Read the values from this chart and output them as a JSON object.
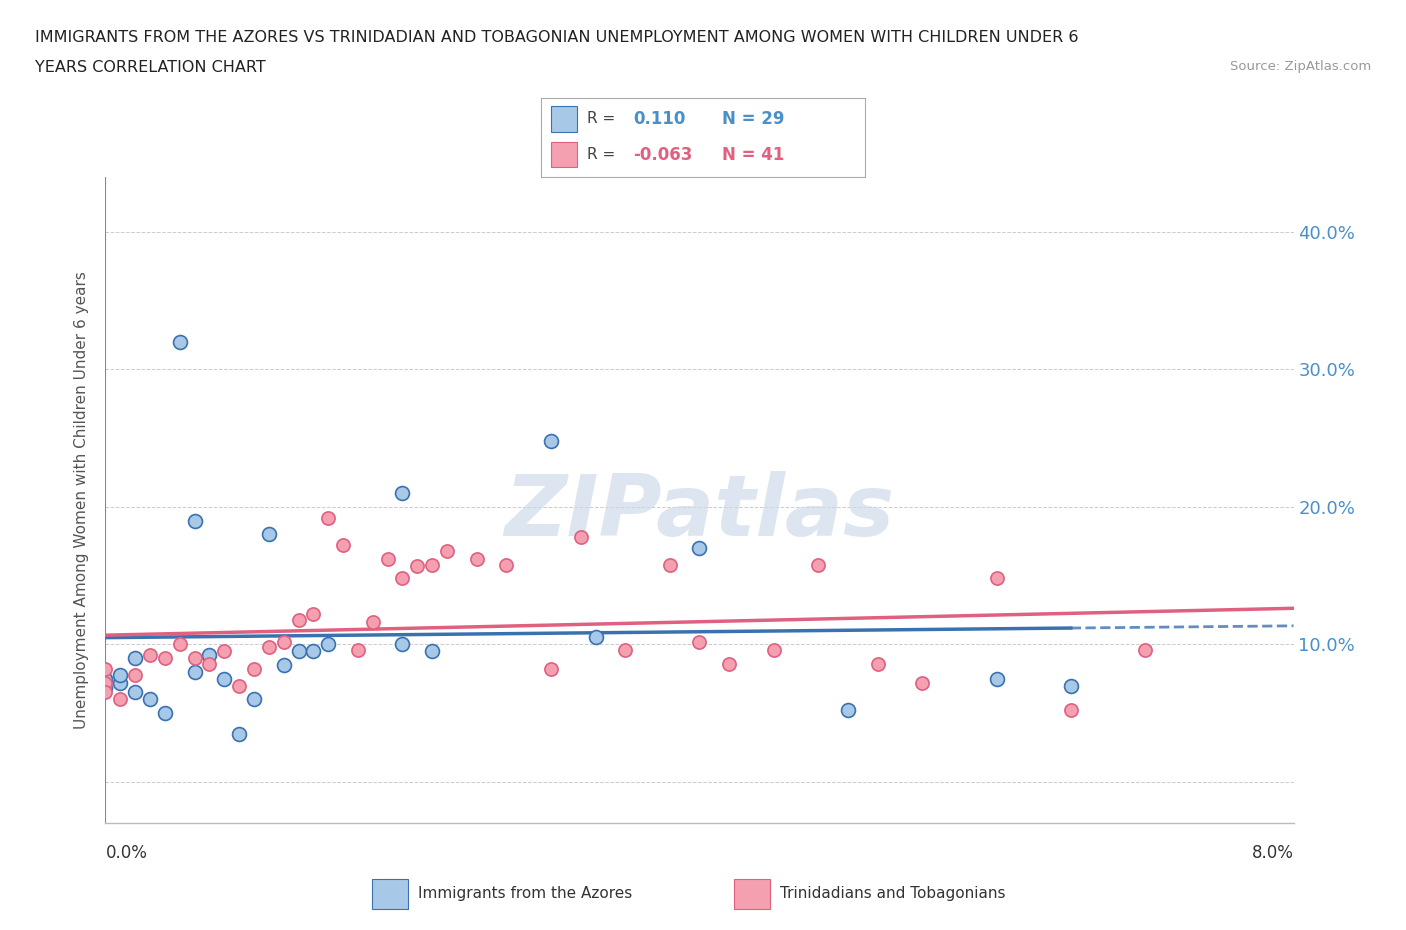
{
  "title_line1": "IMMIGRANTS FROM THE AZORES VS TRINIDADIAN AND TOBAGONIAN UNEMPLOYMENT AMONG WOMEN WITH CHILDREN UNDER 6",
  "title_line2": "YEARS CORRELATION CHART",
  "source": "Source: ZipAtlas.com",
  "ylabel": "Unemployment Among Women with Children Under 6 years",
  "r_azores": 0.11,
  "n_azores": 29,
  "r_trini": -0.063,
  "n_trini": 41,
  "color_azores": "#a8c8e8",
  "color_trini": "#f4a0b0",
  "color_azores_line": "#3a72b0",
  "color_trini_line": "#e06080",
  "watermark_color": "#ccd8e8",
  "xmin": 0.0,
  "xmax": 0.08,
  "ymin": -0.03,
  "ymax": 0.44,
  "azores_x": [
    0.0,
    0.0,
    0.001,
    0.001,
    0.002,
    0.002,
    0.003,
    0.004,
    0.005,
    0.006,
    0.006,
    0.007,
    0.008,
    0.009,
    0.01,
    0.011,
    0.012,
    0.013,
    0.014,
    0.015,
    0.02,
    0.02,
    0.022,
    0.03,
    0.033,
    0.04,
    0.05,
    0.06,
    0.065
  ],
  "azores_y": [
    0.075,
    0.068,
    0.072,
    0.078,
    0.065,
    0.09,
    0.06,
    0.05,
    0.32,
    0.19,
    0.08,
    0.092,
    0.075,
    0.035,
    0.06,
    0.18,
    0.085,
    0.095,
    0.095,
    0.1,
    0.21,
    0.1,
    0.095,
    0.248,
    0.105,
    0.17,
    0.052,
    0.075,
    0.07
  ],
  "trini_x": [
    0.0,
    0.0,
    0.0,
    0.001,
    0.002,
    0.003,
    0.004,
    0.005,
    0.006,
    0.007,
    0.008,
    0.009,
    0.01,
    0.011,
    0.012,
    0.013,
    0.014,
    0.015,
    0.016,
    0.017,
    0.018,
    0.019,
    0.02,
    0.021,
    0.022,
    0.023,
    0.025,
    0.027,
    0.03,
    0.032,
    0.035,
    0.038,
    0.04,
    0.042,
    0.045,
    0.048,
    0.052,
    0.055,
    0.06,
    0.065,
    0.07
  ],
  "trini_y": [
    0.072,
    0.082,
    0.065,
    0.06,
    0.078,
    0.092,
    0.09,
    0.1,
    0.09,
    0.086,
    0.095,
    0.07,
    0.082,
    0.098,
    0.102,
    0.118,
    0.122,
    0.192,
    0.172,
    0.096,
    0.116,
    0.162,
    0.148,
    0.157,
    0.158,
    0.168,
    0.162,
    0.158,
    0.082,
    0.178,
    0.096,
    0.158,
    0.102,
    0.086,
    0.096,
    0.158,
    0.086,
    0.072,
    0.148,
    0.052,
    0.096
  ],
  "yaxis_ticks": [
    0.0,
    0.1,
    0.2,
    0.3,
    0.4
  ],
  "yaxis_right_labels": [
    "",
    "10.0%",
    "20.0%",
    "30.0%",
    "40.0%"
  ]
}
